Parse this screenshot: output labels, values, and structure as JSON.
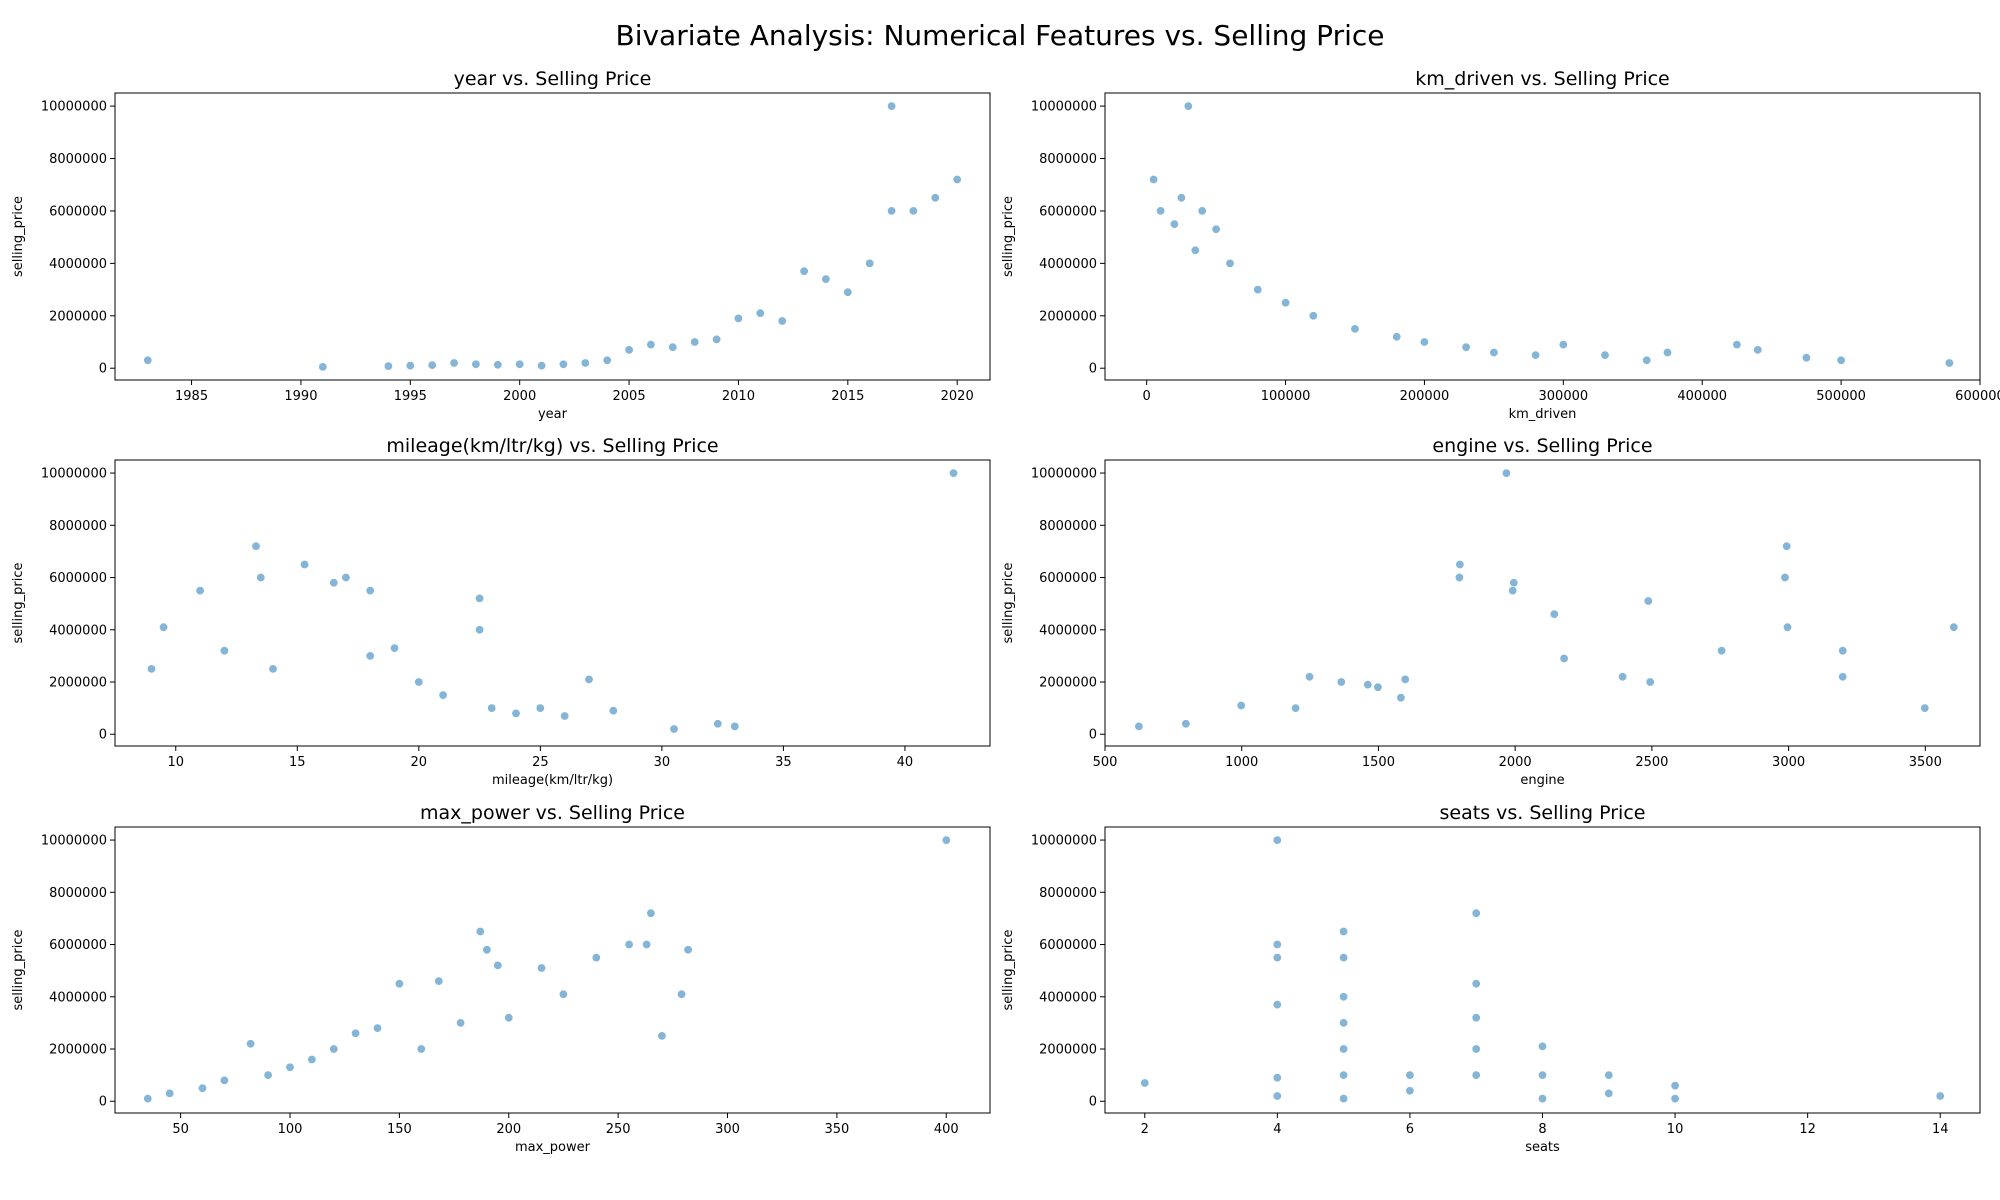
{
  "figure": {
    "title": "Bivariate Analysis: Numerical Features vs. Selling Price"
  },
  "style": {
    "point_color": "#1f77b4",
    "point_opacity": 0.55
  },
  "chart_data": [
    {
      "type": "scatter",
      "title": "year vs. Selling Price",
      "xlabel": "year",
      "ylabel": "selling_price",
      "xlim": [
        1981.5,
        2021.5
      ],
      "ylim": [
        -450000,
        10500000
      ],
      "xticks": [
        1985,
        1990,
        1995,
        2000,
        2005,
        2010,
        2015,
        2020
      ],
      "yticks": [
        0,
        2000000,
        4000000,
        6000000,
        8000000,
        10000000
      ],
      "points": [
        [
          1983,
          300000
        ],
        [
          1991,
          50000
        ],
        [
          1994,
          80000
        ],
        [
          1995,
          100000
        ],
        [
          1996,
          120000
        ],
        [
          1997,
          200000
        ],
        [
          1998,
          150000
        ],
        [
          1999,
          130000
        ],
        [
          2000,
          150000
        ],
        [
          2001,
          100000
        ],
        [
          2002,
          150000
        ],
        [
          2003,
          200000
        ],
        [
          2004,
          300000
        ],
        [
          2005,
          700000
        ],
        [
          2006,
          900000
        ],
        [
          2007,
          800000
        ],
        [
          2008,
          1000000
        ],
        [
          2009,
          1100000
        ],
        [
          2010,
          1900000
        ],
        [
          2011,
          2100000
        ],
        [
          2012,
          1800000
        ],
        [
          2013,
          3700000
        ],
        [
          2014,
          3400000
        ],
        [
          2015,
          2900000
        ],
        [
          2016,
          4000000
        ],
        [
          2017,
          10000000
        ],
        [
          2017,
          6000000
        ],
        [
          2018,
          6000000
        ],
        [
          2019,
          6500000
        ],
        [
          2020,
          7200000
        ]
      ]
    },
    {
      "type": "scatter",
      "title": "km_driven vs. Selling Price",
      "xlabel": "km_driven",
      "ylabel": "selling_price",
      "xlim": [
        -30000,
        600000
      ],
      "ylim": [
        -450000,
        10500000
      ],
      "xticks": [
        0,
        100000,
        200000,
        300000,
        400000,
        500000,
        600000
      ],
      "yticks": [
        0,
        2000000,
        4000000,
        6000000,
        8000000,
        10000000
      ],
      "points": [
        [
          30000,
          10000000
        ],
        [
          5000,
          7200000
        ],
        [
          25000,
          6500000
        ],
        [
          10000,
          6000000
        ],
        [
          40000,
          6000000
        ],
        [
          20000,
          5500000
        ],
        [
          50000,
          5300000
        ],
        [
          35000,
          4500000
        ],
        [
          60000,
          4000000
        ],
        [
          80000,
          3000000
        ],
        [
          100000,
          2500000
        ],
        [
          120000,
          2000000
        ],
        [
          150000,
          1500000
        ],
        [
          180000,
          1200000
        ],
        [
          200000,
          1000000
        ],
        [
          230000,
          800000
        ],
        [
          250000,
          600000
        ],
        [
          280000,
          500000
        ],
        [
          300000,
          900000
        ],
        [
          330000,
          500000
        ],
        [
          360000,
          300000
        ],
        [
          375000,
          600000
        ],
        [
          425000,
          900000
        ],
        [
          440000,
          700000
        ],
        [
          475000,
          400000
        ],
        [
          500000,
          300000
        ],
        [
          578000,
          200000
        ]
      ]
    },
    {
      "type": "scatter",
      "title": "mileage(km/ltr/kg) vs. Selling Price",
      "xlabel": "mileage(km/ltr/kg)",
      "ylabel": "selling_price",
      "xlim": [
        7.5,
        43.5
      ],
      "ylim": [
        -450000,
        10500000
      ],
      "xticks": [
        10,
        15,
        20,
        25,
        30,
        35,
        40
      ],
      "yticks": [
        0,
        2000000,
        4000000,
        6000000,
        8000000,
        10000000
      ],
      "points": [
        [
          9,
          2500000
        ],
        [
          9.5,
          4100000
        ],
        [
          11,
          5500000
        ],
        [
          12,
          3200000
        ],
        [
          13.3,
          7200000
        ],
        [
          13.5,
          6000000
        ],
        [
          14,
          2500000
        ],
        [
          15.3,
          6500000
        ],
        [
          16.5,
          5800000
        ],
        [
          17,
          6000000
        ],
        [
          18,
          5500000
        ],
        [
          18,
          3000000
        ],
        [
          19,
          3300000
        ],
        [
          20,
          2000000
        ],
        [
          21,
          1500000
        ],
        [
          22.5,
          5200000
        ],
        [
          22.5,
          4000000
        ],
        [
          23,
          1000000
        ],
        [
          24,
          800000
        ],
        [
          25,
          1000000
        ],
        [
          26,
          700000
        ],
        [
          27,
          2100000
        ],
        [
          28,
          900000
        ],
        [
          30.5,
          200000
        ],
        [
          32.3,
          400000
        ],
        [
          33,
          300000
        ],
        [
          42,
          10000000
        ]
      ]
    },
    {
      "type": "scatter",
      "title": "engine vs. Selling Price",
      "xlabel": "engine",
      "ylabel": "selling_price",
      "xlim": [
        500,
        3700
      ],
      "ylim": [
        -450000,
        10500000
      ],
      "xticks": [
        500,
        1000,
        1500,
        2000,
        2500,
        3000,
        3500
      ],
      "yticks": [
        0,
        2000000,
        4000000,
        6000000,
        8000000,
        10000000
      ],
      "points": [
        [
          624,
          300000
        ],
        [
          796,
          400000
        ],
        [
          998,
          1100000
        ],
        [
          1197,
          1000000
        ],
        [
          1248,
          2200000
        ],
        [
          1364,
          2000000
        ],
        [
          1461,
          1900000
        ],
        [
          1498,
          1800000
        ],
        [
          1582,
          1400000
        ],
        [
          1598,
          2100000
        ],
        [
          1798,
          6500000
        ],
        [
          1796,
          6000000
        ],
        [
          1968,
          10000000
        ],
        [
          1995,
          5800000
        ],
        [
          1991,
          5500000
        ],
        [
          2143,
          4600000
        ],
        [
          2179,
          2900000
        ],
        [
          2393,
          2200000
        ],
        [
          2487,
          5100000
        ],
        [
          2494,
          2000000
        ],
        [
          2755,
          3200000
        ],
        [
          2993,
          7200000
        ],
        [
          2987,
          6000000
        ],
        [
          2996,
          4100000
        ],
        [
          3198,
          3200000
        ],
        [
          3198,
          2200000
        ],
        [
          3498,
          1000000
        ],
        [
          3604,
          4100000
        ]
      ]
    },
    {
      "type": "scatter",
      "title": "max_power vs. Selling Price",
      "xlabel": "max_power",
      "ylabel": "selling_price",
      "xlim": [
        20,
        420
      ],
      "ylim": [
        -450000,
        10500000
      ],
      "xticks": [
        50,
        100,
        150,
        200,
        250,
        300,
        350,
        400
      ],
      "yticks": [
        0,
        2000000,
        4000000,
        6000000,
        8000000,
        10000000
      ],
      "points": [
        [
          35,
          100000
        ],
        [
          45,
          300000
        ],
        [
          60,
          500000
        ],
        [
          70,
          800000
        ],
        [
          82,
          2200000
        ],
        [
          90,
          1000000
        ],
        [
          100,
          1300000
        ],
        [
          110,
          1600000
        ],
        [
          120,
          2000000
        ],
        [
          130,
          2600000
        ],
        [
          140,
          2800000
        ],
        [
          150,
          4500000
        ],
        [
          160,
          2000000
        ],
        [
          168,
          4600000
        ],
        [
          178,
          3000000
        ],
        [
          187,
          6500000
        ],
        [
          190,
          5800000
        ],
        [
          195,
          5200000
        ],
        [
          200,
          3200000
        ],
        [
          215,
          5100000
        ],
        [
          225,
          4100000
        ],
        [
          240,
          5500000
        ],
        [
          255,
          6000000
        ],
        [
          263,
          6000000
        ],
        [
          265,
          7200000
        ],
        [
          270,
          2500000
        ],
        [
          279,
          4100000
        ],
        [
          282,
          5800000
        ],
        [
          400,
          10000000
        ]
      ]
    },
    {
      "type": "scatter",
      "title": "seats vs. Selling Price",
      "xlabel": "seats",
      "ylabel": "selling_price",
      "xlim": [
        1.4,
        14.6
      ],
      "ylim": [
        -450000,
        10500000
      ],
      "xticks": [
        2,
        4,
        6,
        8,
        10,
        12,
        14
      ],
      "yticks": [
        0,
        2000000,
        4000000,
        6000000,
        8000000,
        10000000
      ],
      "points": [
        [
          2,
          700000
        ],
        [
          4,
          10000000
        ],
        [
          4,
          6000000
        ],
        [
          4,
          5500000
        ],
        [
          4,
          3700000
        ],
        [
          4,
          900000
        ],
        [
          4,
          200000
        ],
        [
          5,
          6500000
        ],
        [
          5,
          5500000
        ],
        [
          5,
          4000000
        ],
        [
          5,
          3000000
        ],
        [
          5,
          2000000
        ],
        [
          5,
          1000000
        ],
        [
          5,
          100000
        ],
        [
          6,
          1000000
        ],
        [
          6,
          400000
        ],
        [
          7,
          7200000
        ],
        [
          7,
          4500000
        ],
        [
          7,
          3200000
        ],
        [
          7,
          2000000
        ],
        [
          7,
          1000000
        ],
        [
          8,
          2100000
        ],
        [
          8,
          1000000
        ],
        [
          8,
          100000
        ],
        [
          9,
          1000000
        ],
        [
          9,
          300000
        ],
        [
          10,
          600000
        ],
        [
          10,
          100000
        ],
        [
          14,
          200000
        ]
      ]
    }
  ]
}
